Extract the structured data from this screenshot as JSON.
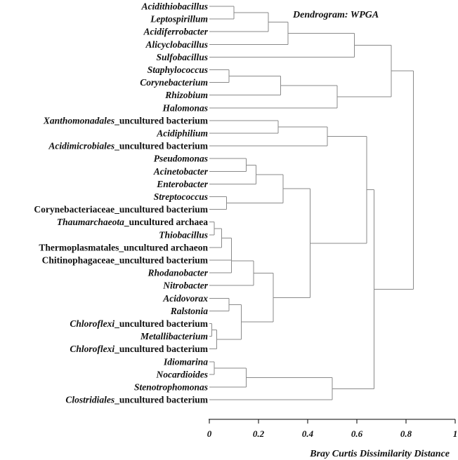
{
  "title": "Dendrogram: WPGA",
  "xlabel": "Bray Curtis Dissimilarity Distance",
  "axis": {
    "min": 0,
    "max": 1,
    "ticks": [
      0,
      0.2,
      0.4,
      0.6,
      0.8,
      1
    ],
    "tick_labels": [
      "0",
      "0.2",
      "0.4",
      "0.6",
      "0.8",
      "1"
    ]
  },
  "leaves": [
    {
      "parts": [
        {
          "t": "Acidithiobacillus",
          "i": true
        }
      ]
    },
    {
      "parts": [
        {
          "t": "Leptospirillum",
          "i": true
        }
      ]
    },
    {
      "parts": [
        {
          "t": "Acidiferrobacter",
          "i": true
        }
      ]
    },
    {
      "parts": [
        {
          "t": "Alicyclobacillus",
          "i": true
        }
      ]
    },
    {
      "parts": [
        {
          "t": "Sulfobacillus",
          "i": true
        }
      ]
    },
    {
      "parts": [
        {
          "t": "Staphylococcus",
          "i": true
        }
      ]
    },
    {
      "parts": [
        {
          "t": "Corynebacterium",
          "i": true
        }
      ]
    },
    {
      "parts": [
        {
          "t": "Rhizobium",
          "i": true
        }
      ]
    },
    {
      "parts": [
        {
          "t": "Halomonas",
          "i": true
        }
      ]
    },
    {
      "parts": [
        {
          "t": "Xanthomonadales",
          "i": true
        },
        {
          "t": "_uncultured bacterium",
          "i": false
        }
      ]
    },
    {
      "parts": [
        {
          "t": "Acidiphilium",
          "i": true
        }
      ]
    },
    {
      "parts": [
        {
          "t": "Acidimicrobiales",
          "i": true
        },
        {
          "t": "_uncultured bacterium",
          "i": false
        }
      ]
    },
    {
      "parts": [
        {
          "t": "Pseudomonas",
          "i": true
        }
      ]
    },
    {
      "parts": [
        {
          "t": "Acinetobacter",
          "i": true
        }
      ]
    },
    {
      "parts": [
        {
          "t": "Enterobacter",
          "i": true
        }
      ]
    },
    {
      "parts": [
        {
          "t": "Streptococcus",
          "i": true
        }
      ]
    },
    {
      "parts": [
        {
          "t": "Corynebacteriaceae_uncultured bacterium",
          "i": false
        }
      ]
    },
    {
      "parts": [
        {
          "t": "Thaumarchaeota",
          "i": true
        },
        {
          "t": "_uncultured archaea",
          "i": false
        }
      ]
    },
    {
      "parts": [
        {
          "t": "Thiobacillus",
          "i": true
        }
      ]
    },
    {
      "parts": [
        {
          "t": "Thermoplasmatales_uncultured archaeon",
          "i": false
        }
      ]
    },
    {
      "parts": [
        {
          "t": "Chitinophagaceae_uncultured bacterium",
          "i": false
        }
      ]
    },
    {
      "parts": [
        {
          "t": "Rhodanobacter",
          "i": true
        }
      ]
    },
    {
      "parts": [
        {
          "t": "Nitrobacter",
          "i": true
        }
      ]
    },
    {
      "parts": [
        {
          "t": "Acidovorax",
          "i": true
        }
      ]
    },
    {
      "parts": [
        {
          "t": "Ralstonia",
          "i": true
        }
      ]
    },
    {
      "parts": [
        {
          "t": "Chloroflexi",
          "i": true
        },
        {
          "t": "_uncultured bacterium",
          "i": false
        }
      ]
    },
    {
      "parts": [
        {
          "t": "Metallibacterium",
          "i": true
        }
      ]
    },
    {
      "parts": [
        {
          "t": "Chloroflexi",
          "i": true
        },
        {
          "t": "_uncultured bacterium",
          "i": false
        }
      ]
    },
    {
      "parts": [
        {
          "t": "Idiomarina",
          "i": true
        }
      ]
    },
    {
      "parts": [
        {
          "t": "Nocardioides",
          "i": true
        }
      ]
    },
    {
      "parts": [
        {
          "t": "Stenotrophomonas",
          "i": true
        }
      ]
    },
    {
      "parts": [
        {
          "t": "Clostridiales",
          "i": true
        },
        {
          "t": "_uncultured bacterium",
          "i": false
        }
      ]
    }
  ],
  "merges": [
    {
      "l": 0,
      "r": 1,
      "h": 0.1
    },
    {
      "l": 0,
      "r": 2,
      "h": 0.24
    },
    {
      "l": 0,
      "r": 3,
      "h": 0.32
    },
    {
      "l": 0,
      "r": 4,
      "h": 0.59
    },
    {
      "l": 5,
      "r": 6,
      "h": 0.08
    },
    {
      "l": 5,
      "r": 7,
      "h": 0.29
    },
    {
      "l": 5,
      "r": 8,
      "h": 0.52
    },
    {
      "l": 0,
      "r": 5,
      "h": 0.74
    },
    {
      "l": 9,
      "r": 10,
      "h": 0.28
    },
    {
      "l": 9,
      "r": 11,
      "h": 0.48
    },
    {
      "l": 12,
      "r": 13,
      "h": 0.15
    },
    {
      "l": 12,
      "r": 14,
      "h": 0.19
    },
    {
      "l": 15,
      "r": 16,
      "h": 0.07
    },
    {
      "l": 12,
      "r": 15,
      "h": 0.3
    },
    {
      "l": 17,
      "r": 18,
      "h": 0.02
    },
    {
      "l": 17,
      "r": 19,
      "h": 0.05
    },
    {
      "l": 17,
      "r": 20,
      "h": 0.09
    },
    {
      "l": 17,
      "r": 21,
      "h": 0.09
    },
    {
      "l": 17,
      "r": 22,
      "h": 0.18
    },
    {
      "l": 23,
      "r": 24,
      "h": 0.08
    },
    {
      "l": 25,
      "r": 26,
      "h": 0.01
    },
    {
      "l": 25,
      "r": 27,
      "h": 0.03
    },
    {
      "l": 23,
      "r": 25,
      "h": 0.13
    },
    {
      "l": 17,
      "r": 23,
      "h": 0.26
    },
    {
      "l": 12,
      "r": 17,
      "h": 0.41
    },
    {
      "l": 9,
      "r": 12,
      "h": 0.64
    },
    {
      "l": 28,
      "r": 29,
      "h": 0.02
    },
    {
      "l": 28,
      "r": 30,
      "h": 0.15
    },
    {
      "l": 28,
      "r": 31,
      "h": 0.5
    },
    {
      "l": 9,
      "r": 28,
      "h": 0.67
    },
    {
      "l": 0,
      "r": 9,
      "h": 0.83
    }
  ]
}
